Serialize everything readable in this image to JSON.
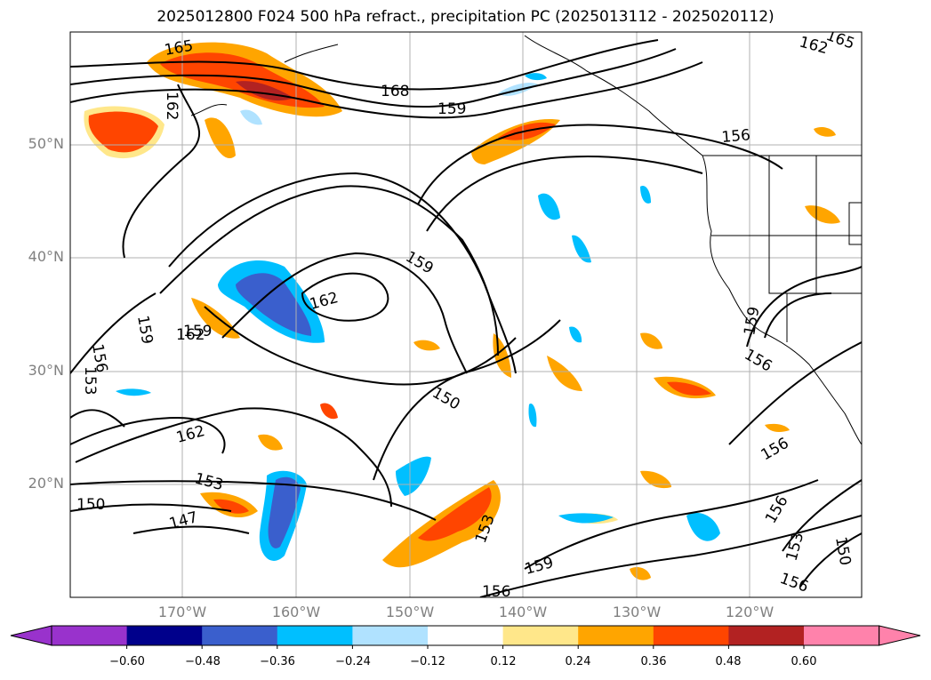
{
  "title": "2025012800 F024 500 hPa refract., precipitation PC (2025013112 - 2025020112)",
  "lat_labels": [
    "50°N",
    "40°N",
    "30°N",
    "20°N"
  ],
  "lon_labels": [
    "170°W",
    "160°W",
    "150°W",
    "140°W",
    "130°W",
    "120°W"
  ],
  "contour_labels": [
    "165",
    "162",
    "168",
    "159",
    "156",
    "162",
    "159",
    "162",
    "159",
    "156",
    "153",
    "159",
    "150",
    "162",
    "153",
    "150",
    "147",
    "153",
    "159",
    "156",
    "159",
    "156",
    "156",
    "156",
    "153",
    "150",
    "156",
    "165",
    "162"
  ],
  "colorbar": {
    "ticks": [
      "−0.60",
      "−0.48",
      "−0.36",
      "−0.24",
      "−0.12",
      "0.12",
      "0.24",
      "0.36",
      "0.48",
      "0.60"
    ],
    "colors": [
      "#9932cc",
      "#00008b",
      "#3a5fcd",
      "#00bfff",
      "#b0e2ff",
      "#ffffff",
      "#ffe78a",
      "#ffa500",
      "#ff4500",
      "#b22222",
      "#ff82ab"
    ]
  }
}
